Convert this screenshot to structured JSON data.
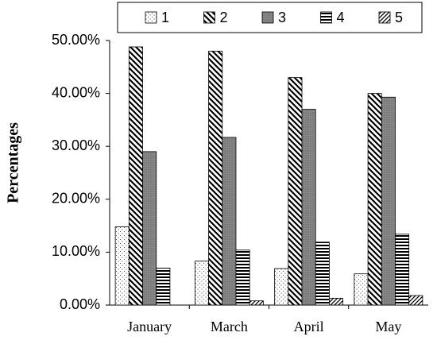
{
  "chart_data": {
    "type": "bar",
    "y_label": "Percentages",
    "categories": [
      "January",
      "March",
      "April",
      "May"
    ],
    "series": [
      {
        "name": "1",
        "pattern": "dots",
        "values": [
          14.8,
          8.3,
          6.9,
          5.9
        ]
      },
      {
        "name": "2",
        "pattern": "diagonal-back",
        "values": [
          48.8,
          48.0,
          43.0,
          40.0
        ]
      },
      {
        "name": "3",
        "pattern": "gray-dots",
        "values": [
          29.0,
          31.7,
          37.0,
          39.3
        ]
      },
      {
        "name": "4",
        "pattern": "horizontal",
        "values": [
          7.0,
          10.4,
          11.9,
          13.4
        ]
      },
      {
        "name": "5",
        "pattern": "diagonal",
        "values": [
          0.0,
          0.8,
          1.3,
          1.8
        ]
      }
    ],
    "ylim": [
      0,
      50
    ],
    "yticks": [
      {
        "value": 0,
        "label": "0.00%"
      },
      {
        "value": 10,
        "label": "10.00%"
      },
      {
        "value": 20,
        "label": "20.00%"
      },
      {
        "value": 30,
        "label": "30.00%"
      },
      {
        "value": 40,
        "label": "40.00%"
      },
      {
        "value": 50,
        "label": "50.00%"
      }
    ],
    "legend": "top"
  }
}
